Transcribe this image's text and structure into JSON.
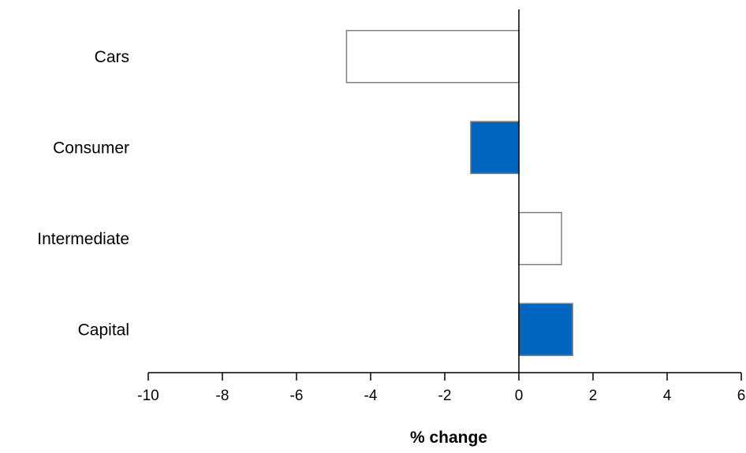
{
  "chart_data": {
    "type": "bar",
    "orientation": "horizontal",
    "categories": [
      "Cars",
      "Consumer",
      "Intermediate",
      "Capital"
    ],
    "values": [
      -4.65,
      -1.3,
      1.15,
      1.45
    ],
    "bar_fills": [
      "#ffffff",
      "#0066c0",
      "#ffffff",
      "#0066c0"
    ],
    "xlabel": "% change",
    "ylabel": "",
    "xlim": [
      -10,
      6
    ],
    "xticks": [
      -10,
      -8,
      -6,
      -4,
      -2,
      0,
      2,
      4,
      6
    ],
    "tick_labels": [
      "-10",
      "-8",
      "-6",
      "-4",
      "-2",
      "0",
      "2",
      "4",
      "6"
    ],
    "grid": false,
    "colors": {
      "accent": "#0066c0",
      "outline": "#808080",
      "axis": "#000000"
    }
  }
}
